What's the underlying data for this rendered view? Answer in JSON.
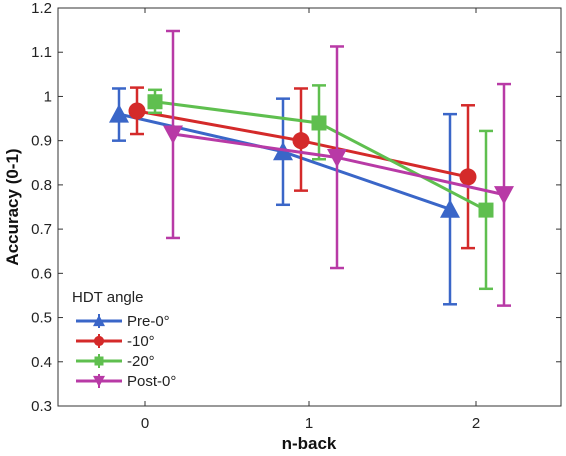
{
  "chart_data": {
    "type": "line",
    "xlabel": "n-back",
    "ylabel": "Accuracy (0-1)",
    "ylim": [
      0.3,
      1.2
    ],
    "y_ticks": [
      "0.3",
      "0.4",
      "0.5",
      "0.6",
      "0.7",
      "0.8",
      "0.9",
      "1",
      "1.1",
      "1.2"
    ],
    "x_ticks": [
      "0",
      "1",
      "2"
    ],
    "legend_title": "HDT angle",
    "legend_position": "bottom-left",
    "grid": false,
    "series": [
      {
        "name": "Pre-0°",
        "color": "#3a66c8",
        "marker": "triangle-up",
        "x": [
          0,
          1,
          2
        ],
        "values": [
          0.96,
          0.875,
          0.745
        ],
        "err_low": [
          0.9,
          0.755,
          0.53
        ],
        "err_high": [
          1.018,
          0.995,
          0.96
        ]
      },
      {
        "name": "-10°",
        "color": "#d42a2a",
        "marker": "circle",
        "x": [
          0,
          1,
          2
        ],
        "values": [
          0.967,
          0.9,
          0.818
        ],
        "err_low": [
          0.915,
          0.787,
          0.657
        ],
        "err_high": [
          1.02,
          1.018,
          0.98
        ]
      },
      {
        "name": "-20°",
        "color": "#5fbf4f",
        "marker": "square",
        "x": [
          0,
          1,
          2
        ],
        "values": [
          0.988,
          0.94,
          0.743
        ],
        "err_low": [
          0.963,
          0.858,
          0.565
        ],
        "err_high": [
          1.015,
          1.025,
          0.922
        ]
      },
      {
        "name": "Post-0°",
        "color": "#b83aa6",
        "marker": "triangle-down",
        "x": [
          0,
          1,
          2
        ],
        "values": [
          0.915,
          0.862,
          0.778
        ],
        "err_low": [
          0.68,
          0.612,
          0.527
        ],
        "err_high": [
          1.148,
          1.113,
          1.028
        ]
      }
    ]
  }
}
